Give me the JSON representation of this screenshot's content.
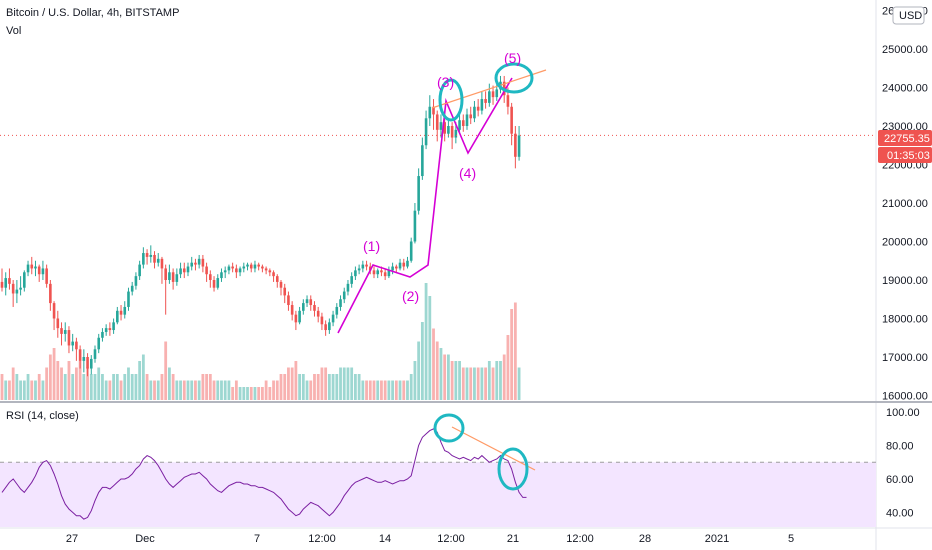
{
  "header": {
    "title": "Bitcoin / U.S. Dollar, 4h, BITSTAMP",
    "volume_label": "Vol",
    "currency_button": "USD"
  },
  "price_badges": {
    "last_price": "22755.35",
    "countdown": "01:35:03"
  },
  "colors": {
    "up": "#26a69a",
    "down": "#ef5350",
    "wave_line": "#d500d5",
    "trend_line": "#ff9a66",
    "circle": "#1fb8c2",
    "rsi_line": "#7b1fa2",
    "rsi_band": "#f3e5ff",
    "badge": "#ef5350"
  },
  "chart_data": [
    {
      "type": "candlestick",
      "title": "Bitcoin / U.S. Dollar, 4h, BITSTAMP",
      "price_axis": {
        "ticks": [
          "16000.00",
          "17000.00",
          "18000.00",
          "19000.00",
          "20000.00",
          "21000.00",
          "22000.00",
          "23000.00",
          "24000.00",
          "25000.00",
          "26000.00"
        ],
        "range": [
          16000,
          26000
        ]
      },
      "time_axis": {
        "ticks": [
          "27",
          "Dec",
          "7",
          "12:00",
          "14",
          "12:00",
          "21",
          "12:00",
          "28",
          "2021",
          "5"
        ]
      },
      "last_price": 22755.35,
      "candles": [
        [
          18950,
          18800,
          19300,
          18700
        ],
        [
          18800,
          19050,
          19200,
          18600
        ],
        [
          19050,
          18900,
          19300,
          18750
        ],
        [
          18900,
          18650,
          19000,
          18300
        ],
        [
          18650,
          18750,
          19000,
          18400
        ],
        [
          18750,
          18800,
          19100,
          18600
        ],
        [
          18800,
          19200,
          19250,
          18700
        ],
        [
          19200,
          19400,
          19500,
          19100
        ],
        [
          19400,
          19300,
          19600,
          19150
        ],
        [
          19300,
          19350,
          19500,
          19100
        ],
        [
          19350,
          19150,
          19400,
          18950
        ],
        [
          19150,
          19300,
          19500,
          19000
        ],
        [
          19300,
          18900,
          19400,
          18800
        ],
        [
          18900,
          18400,
          19000,
          18200
        ],
        [
          18400,
          18000,
          18450,
          17700
        ],
        [
          18000,
          17750,
          18200,
          17500
        ],
        [
          17750,
          17600,
          17900,
          17300
        ],
        [
          17600,
          17700,
          17900,
          17400
        ],
        [
          17700,
          17300,
          17800,
          17100
        ],
        [
          17300,
          17400,
          17600,
          17150
        ],
        [
          17400,
          17200,
          17500,
          16900
        ],
        [
          17200,
          16900,
          17300,
          16700
        ],
        [
          16900,
          17000,
          17200,
          16600
        ],
        [
          17000,
          16700,
          17100,
          16500
        ],
        [
          16700,
          16950,
          17050,
          16550
        ],
        [
          16950,
          17200,
          17300,
          16850
        ],
        [
          17200,
          17500,
          17600,
          17100
        ],
        [
          17500,
          17650,
          17750,
          17400
        ],
        [
          17650,
          17750,
          17850,
          17550
        ],
        [
          17750,
          17700,
          17900,
          17550
        ],
        [
          17700,
          17900,
          18000,
          17600
        ],
        [
          17900,
          18200,
          18300,
          17850
        ],
        [
          18200,
          18100,
          18350,
          17950
        ],
        [
          18100,
          18300,
          18450,
          18000
        ],
        [
          18300,
          18700,
          18800,
          18200
        ],
        [
          18700,
          18850,
          18950,
          18600
        ],
        [
          18850,
          19100,
          19200,
          18750
        ],
        [
          19100,
          19400,
          19500,
          19000
        ],
        [
          19400,
          19700,
          19850,
          19300
        ],
        [
          19700,
          19600,
          19800,
          19400
        ],
        [
          19600,
          19650,
          19900,
          19450
        ],
        [
          19650,
          19450,
          19750,
          19300
        ],
        [
          19450,
          19550,
          19700,
          19350
        ],
        [
          19550,
          19300,
          19600,
          18900
        ],
        [
          19300,
          19000,
          19400,
          18100
        ],
        [
          19000,
          19200,
          19400,
          18900
        ],
        [
          19200,
          18950,
          19300,
          18750
        ],
        [
          18950,
          19150,
          19300,
          18850
        ],
        [
          19150,
          19300,
          19450,
          19050
        ],
        [
          19300,
          19200,
          19450,
          19050
        ],
        [
          19200,
          19350,
          19450,
          19100
        ],
        [
          19350,
          19450,
          19600,
          19250
        ],
        [
          19450,
          19400,
          19550,
          19250
        ],
        [
          19400,
          19550,
          19650,
          19300
        ],
        [
          19550,
          19350,
          19650,
          19200
        ],
        [
          19350,
          19150,
          19450,
          18950
        ],
        [
          19150,
          19000,
          19250,
          18800
        ],
        [
          19000,
          18800,
          19100,
          18700
        ],
        [
          18800,
          19050,
          19150,
          18750
        ],
        [
          19050,
          19200,
          19300,
          18950
        ],
        [
          19200,
          19250,
          19350,
          19050
        ],
        [
          19250,
          19350,
          19400,
          19150
        ],
        [
          19350,
          19300,
          19450,
          19200
        ],
        [
          19300,
          19200,
          19400,
          19050
        ],
        [
          19200,
          19300,
          19350,
          19100
        ],
        [
          19300,
          19350,
          19450,
          19200
        ],
        [
          19350,
          19400,
          19450,
          19250
        ],
        [
          19400,
          19300,
          19450,
          19200
        ],
        [
          19300,
          19400,
          19500,
          19200
        ],
        [
          19400,
          19350,
          19450,
          19250
        ],
        [
          19350,
          19300,
          19400,
          19200
        ],
        [
          19300,
          19250,
          19350,
          19150
        ],
        [
          19250,
          19200,
          19300,
          19100
        ],
        [
          19200,
          19100,
          19250,
          18950
        ],
        [
          19100,
          18950,
          19150,
          18800
        ],
        [
          18950,
          18800,
          19000,
          18600
        ],
        [
          18800,
          18600,
          18900,
          18400
        ],
        [
          18600,
          18350,
          18700,
          18200
        ],
        [
          18350,
          18100,
          18450,
          17950
        ],
        [
          18100,
          17900,
          18200,
          17700
        ],
        [
          17900,
          18200,
          18300,
          17850
        ],
        [
          18200,
          18400,
          18500,
          18100
        ],
        [
          18400,
          18500,
          18600,
          18300
        ],
        [
          18500,
          18350,
          18600,
          18200
        ],
        [
          18350,
          18200,
          18450,
          18050
        ],
        [
          18200,
          18050,
          18300,
          17900
        ],
        [
          18050,
          17850,
          18150,
          17700
        ],
        [
          17850,
          17700,
          17950,
          17550
        ],
        [
          17700,
          17900,
          18000,
          17600
        ],
        [
          17900,
          18100,
          18200,
          17800
        ],
        [
          18100,
          18300,
          18400,
          18000
        ],
        [
          18300,
          18500,
          18600,
          18200
        ],
        [
          18500,
          18700,
          18800,
          18400
        ],
        [
          18700,
          18900,
          19000,
          18600
        ],
        [
          18900,
          19100,
          19200,
          18800
        ],
        [
          19100,
          19250,
          19350,
          19000
        ],
        [
          19250,
          19300,
          19400,
          19150
        ],
        [
          19300,
          19400,
          19500,
          19200
        ],
        [
          19400,
          19350,
          19500,
          19250
        ],
        [
          19350,
          19250,
          19450,
          19150
        ],
        [
          19250,
          19150,
          19350,
          19050
        ],
        [
          19150,
          19250,
          19300,
          19050
        ],
        [
          19250,
          19200,
          19350,
          19100
        ],
        [
          19200,
          19100,
          19300,
          19000
        ],
        [
          19100,
          19250,
          19350,
          19050
        ],
        [
          19250,
          19350,
          19450,
          19150
        ],
        [
          19350,
          19300,
          19400,
          19200
        ],
        [
          19300,
          19450,
          19550,
          19250
        ],
        [
          19450,
          19350,
          19550,
          19250
        ],
        [
          19350,
          19500,
          19600,
          19300
        ],
        [
          19500,
          20000,
          20100,
          19450
        ],
        [
          20000,
          20800,
          21000,
          19950
        ],
        [
          20800,
          21700,
          21900,
          20700
        ],
        [
          21700,
          22500,
          22700,
          21600
        ],
        [
          22500,
          23200,
          23400,
          22400
        ],
        [
          23200,
          23500,
          23800,
          23000
        ],
        [
          23500,
          23300,
          23700,
          22900
        ],
        [
          23300,
          22900,
          23400,
          22600
        ],
        [
          22900,
          23100,
          23300,
          22700
        ],
        [
          23100,
          22800,
          23200,
          22600
        ],
        [
          22800,
          23000,
          23200,
          22700
        ],
        [
          23000,
          22700,
          23100,
          22400
        ],
        [
          22700,
          22900,
          23100,
          22550
        ],
        [
          22900,
          23150,
          23300,
          22800
        ],
        [
          23150,
          23000,
          23300,
          22850
        ],
        [
          23000,
          23300,
          23450,
          22900
        ],
        [
          23300,
          23200,
          23500,
          23050
        ],
        [
          23200,
          23500,
          23650,
          23100
        ],
        [
          23500,
          23400,
          23700,
          23250
        ],
        [
          23400,
          23700,
          23900,
          23300
        ],
        [
          23700,
          23600,
          23900,
          23450
        ],
        [
          23600,
          23900,
          24100,
          23500
        ],
        [
          23900,
          23750,
          24050,
          23550
        ],
        [
          23750,
          23950,
          24150,
          23650
        ],
        [
          23950,
          24150,
          24300,
          23850
        ],
        [
          24150,
          23800,
          24300,
          23600
        ],
        [
          23800,
          23500,
          24000,
          23300
        ],
        [
          23500,
          22800,
          23600,
          22500
        ],
        [
          22800,
          22200,
          23000,
          21900
        ],
        [
          22200,
          22755,
          23000,
          22100
        ]
      ],
      "volume": [
        4,
        3,
        3,
        5,
        4,
        3,
        3,
        4,
        3,
        3,
        4,
        3,
        5,
        7,
        8,
        6,
        5,
        4,
        6,
        4,
        5,
        6,
        4,
        5,
        4,
        4,
        5,
        4,
        3,
        3,
        4,
        4,
        3,
        4,
        5,
        4,
        4,
        6,
        7,
        4,
        3,
        3,
        3,
        4,
        9,
        5,
        4,
        3,
        3,
        3,
        3,
        3,
        3,
        3,
        4,
        4,
        4,
        3,
        3,
        3,
        3,
        3,
        2,
        3,
        2,
        2,
        2,
        2,
        2,
        2,
        2,
        3,
        2,
        3,
        3,
        4,
        4,
        5,
        5,
        6,
        4,
        4,
        3,
        3,
        4,
        4,
        5,
        5,
        4,
        4,
        4,
        5,
        5,
        5,
        5,
        4,
        4,
        3,
        3,
        3,
        3,
        3,
        3,
        3,
        3,
        3,
        3,
        3,
        3,
        3,
        4,
        6,
        9,
        12,
        18,
        16,
        11,
        9,
        8,
        7,
        7,
        6,
        6,
        6,
        5,
        5,
        5,
        5,
        5,
        5,
        5,
        6,
        5,
        6,
        6,
        7,
        10,
        14,
        15,
        5
      ]
    },
    {
      "type": "line",
      "title": "RSI (14, close)",
      "y_axis": {
        "ticks": [
          "40.00",
          "60.00",
          "80.00",
          "100.00"
        ],
        "range": [
          35,
          100
        ]
      },
      "bands": {
        "upper": 70,
        "lower": 30
      },
      "values": [
        52,
        55,
        58,
        60,
        57,
        54,
        52,
        55,
        58,
        62,
        67,
        70,
        71,
        68,
        63,
        57,
        50,
        45,
        42,
        40,
        38,
        38,
        36,
        37,
        41,
        47,
        52,
        55,
        55,
        54,
        56,
        58,
        60,
        60,
        61,
        63,
        66,
        68,
        72,
        74,
        73,
        71,
        68,
        64,
        60,
        57,
        55,
        57,
        59,
        61,
        62,
        63,
        63,
        64,
        62,
        60,
        57,
        55,
        53,
        52,
        54,
        56,
        57,
        58,
        58,
        57,
        57,
        56,
        56,
        55,
        55,
        54,
        53,
        52,
        50,
        48,
        45,
        42,
        40,
        38,
        39,
        42,
        44,
        46,
        45,
        44,
        42,
        40,
        38,
        40,
        43,
        46,
        50,
        53,
        56,
        58,
        59,
        60,
        61,
        60,
        59,
        58,
        58,
        59,
        58,
        57,
        58,
        59,
        59,
        60,
        62,
        71,
        80,
        85,
        87,
        89,
        90,
        88,
        82,
        77,
        76,
        74,
        73,
        72,
        73,
        72,
        71,
        73,
        72,
        74,
        72,
        70,
        71,
        72,
        74,
        72,
        71,
        66,
        58,
        52,
        49,
        49
      ]
    }
  ],
  "annotations": {
    "wave_labels": [
      "(1)",
      "(2)",
      "(3)",
      "(4)",
      "(5)"
    ]
  }
}
